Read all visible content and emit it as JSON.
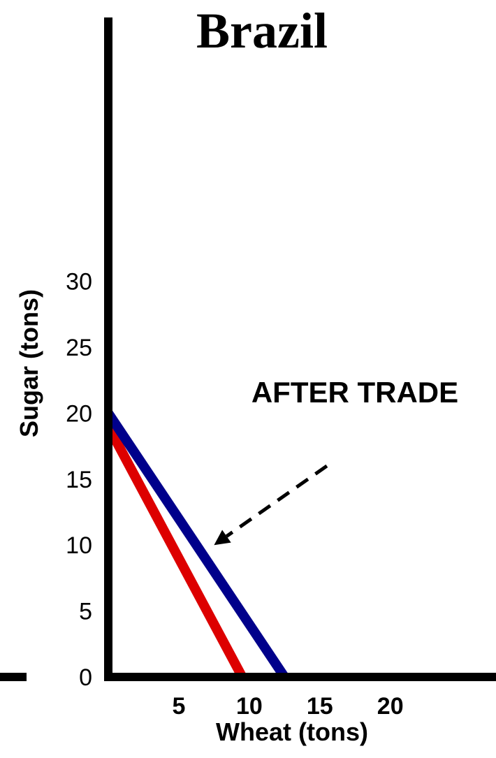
{
  "chart_data": {
    "type": "line",
    "title": "Brazil",
    "xlabel": "Wheat (tons)",
    "ylabel": "Sugar (tons)",
    "xlim": [
      0,
      27
    ],
    "ylim": [
      0,
      50
    ],
    "x_ticks": [
      "5",
      "10",
      "15",
      "20"
    ],
    "y_ticks": [
      "0",
      "5",
      "10",
      "15",
      "20",
      "25",
      "30"
    ],
    "series": [
      {
        "color": "#dd0000",
        "points": [
          [
            0,
            19
          ],
          [
            9.5,
            0
          ]
        ]
      },
      {
        "color": "#00008b",
        "points": [
          [
            0,
            20
          ],
          [
            12.5,
            0
          ]
        ]
      }
    ],
    "annotations": [
      {
        "text": "AFTER TRADE",
        "arrow_from": [
          15.5,
          16
        ],
        "arrow_to": [
          7.5,
          10
        ]
      }
    ],
    "grid": false
  }
}
